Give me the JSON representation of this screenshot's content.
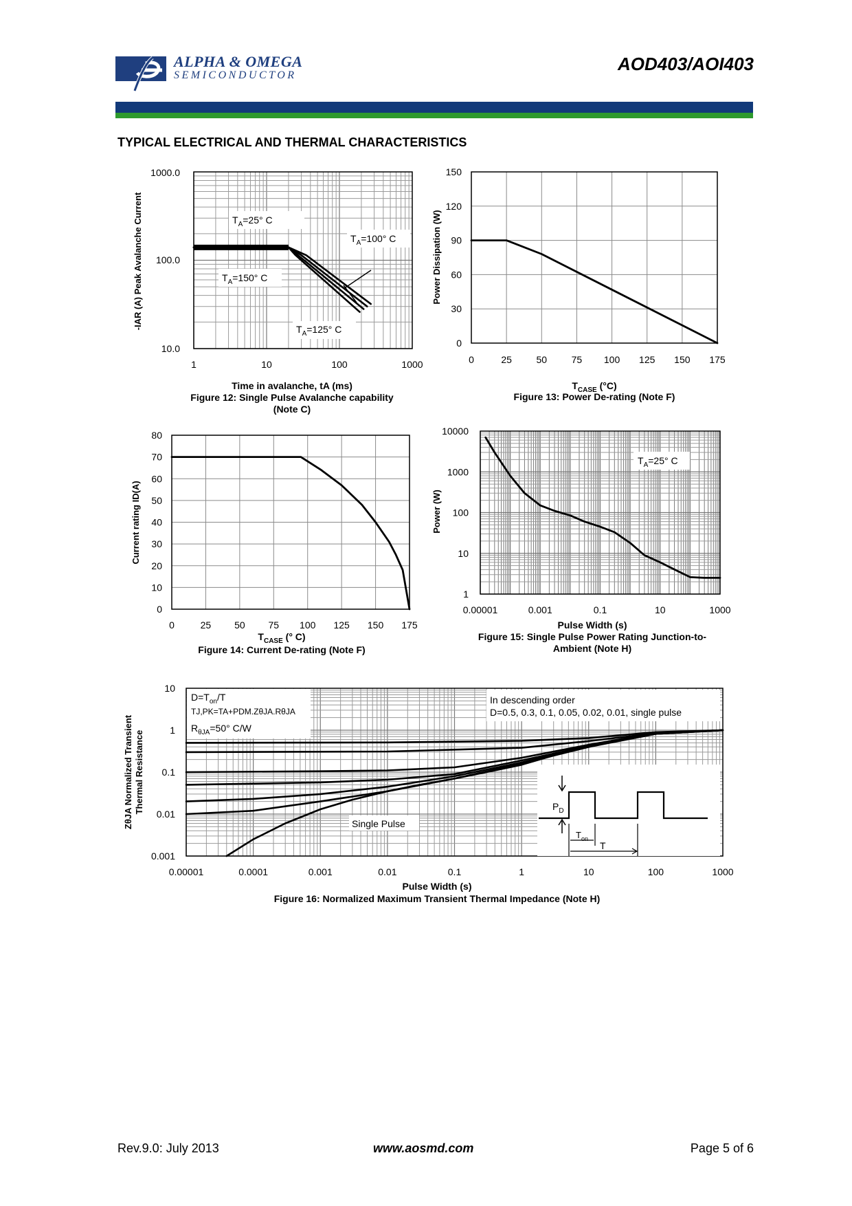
{
  "header": {
    "company": "ALPHA & OMEGA",
    "company_sub": "SEMICONDUCTOR",
    "part_number": "AOD403/AOI403",
    "colors": {
      "brand_blue": "#123a7a",
      "brand_green": "#2e9a2e"
    }
  },
  "section_title": "TYPICAL ELECTRICAL AND THERMAL CHARACTERISTICS",
  "chart_data": [
    {
      "type": "line",
      "id": "fig12",
      "title": "Figure 12: Single Pulse Avalanche capability",
      "subtitle": "(Note C)",
      "xlabel": "Time in avalanche, tA (ms)",
      "ylabel": "-IAR (A) Peak Avalanche Current",
      "xscale": "log",
      "yscale": "log",
      "xlim": [
        1,
        1000
      ],
      "ylim": [
        10,
        1000
      ],
      "xticks": [
        "1",
        "10",
        "100",
        "1000"
      ],
      "yticks": [
        "10.0",
        "100.0",
        "1000.0"
      ],
      "annotations": [
        {
          "base": "T",
          "sub": "A",
          "rest": "=25° C"
        },
        {
          "base": "T",
          "sub": "A",
          "rest": "=100° C"
        },
        {
          "base": "T",
          "sub": "A",
          "rest": "=150° C"
        },
        {
          "base": "T",
          "sub": "A",
          "rest": "=125° C"
        }
      ],
      "series": [
        {
          "name": "TA=25°C",
          "x": [
            1,
            20,
            35,
            270
          ],
          "y": [
            140,
            140,
            114,
            32
          ]
        },
        {
          "name": "TA=100°C",
          "x": [
            1,
            20,
            30,
            240
          ],
          "y": [
            140,
            140,
            114,
            30
          ]
        },
        {
          "name": "TA=125°C",
          "x": [
            1,
            20,
            27,
            215
          ],
          "y": [
            140,
            140,
            114,
            28
          ]
        },
        {
          "name": "TA=150°C",
          "x": [
            1,
            20,
            25,
            190
          ],
          "y": [
            140,
            140,
            114,
            26
          ]
        }
      ]
    },
    {
      "type": "line",
      "id": "fig13",
      "title": "Figure 13: Power De-rating (Note F)",
      "xlabel_base": "T",
      "xlabel_sub": "CASE",
      "xlabel_rest": " (°C)",
      "ylabel": "Power Dissipation (W)",
      "xlim": [
        0,
        175
      ],
      "ylim": [
        0,
        150
      ],
      "xticks": [
        "0",
        "25",
        "50",
        "75",
        "100",
        "125",
        "150",
        "175"
      ],
      "yticks": [
        "0",
        "30",
        "60",
        "90",
        "120",
        "150"
      ],
      "series": [
        {
          "name": "Power",
          "x": [
            0,
            25,
            50,
            175
          ],
          "y": [
            90,
            90,
            78,
            0
          ]
        }
      ]
    },
    {
      "type": "line",
      "id": "fig14",
      "title": "Figure 14: Current De-rating (Note F)",
      "xlabel_base": "T",
      "xlabel_sub": "CASE",
      "xlabel_rest": " (° C)",
      "ylabel": "Current rating ID(A)",
      "xlim": [
        0,
        175
      ],
      "ylim": [
        0,
        80
      ],
      "xticks": [
        "0",
        "25",
        "50",
        "75",
        "100",
        "125",
        "150",
        "175"
      ],
      "yticks": [
        "0",
        "10",
        "20",
        "30",
        "40",
        "50",
        "60",
        "70",
        "80"
      ],
      "series": [
        {
          "name": "Current",
          "x": [
            0,
            95,
            110,
            125,
            140,
            150,
            160,
            165,
            170,
            175
          ],
          "y": [
            70,
            70,
            64,
            57,
            48,
            40,
            31,
            25,
            18,
            0
          ]
        }
      ]
    },
    {
      "type": "line",
      "id": "fig15",
      "title": "Figure 15: Single Pulse Power Rating Junction-to-",
      "subtitle": "Ambient (Note H)",
      "xlabel": "Pulse Width (s)",
      "ylabel": "Power (W)",
      "xscale": "log",
      "yscale": "log",
      "xlim": [
        1e-05,
        1000
      ],
      "ylim": [
        1,
        10000
      ],
      "xticks": [
        "0.00001",
        "0.001",
        "0.1",
        "10",
        "1000"
      ],
      "yticks": [
        "1",
        "10",
        "100",
        "1000",
        "10000"
      ],
      "annotations": [
        {
          "base": "T",
          "sub": "A",
          "rest": "=25° C"
        }
      ],
      "series": [
        {
          "name": "Single Pulse",
          "x": [
            1.5e-05,
            3e-05,
            0.0001,
            0.0003,
            0.001,
            0.003,
            0.01,
            0.03,
            0.1,
            0.3,
            1,
            3,
            10,
            30,
            100,
            300,
            1000
          ],
          "y": [
            7000,
            3000,
            800,
            300,
            150,
            110,
            85,
            60,
            45,
            33,
            18,
            9,
            6,
            4,
            2.6,
            2.5,
            2.5
          ]
        }
      ]
    },
    {
      "type": "line",
      "id": "fig16",
      "title": "Figure 16: Normalized Maximum Transient Thermal Impedance (Note H)",
      "xlabel": "Pulse Width (s)",
      "ylabel_line1": "ZθJA Normalized Transient",
      "ylabel_line2": "Thermal Resistance",
      "xscale": "log",
      "yscale": "log",
      "xlim": [
        1e-05,
        1000
      ],
      "ylim": [
        0.001,
        10
      ],
      "xticks": [
        "0.00001",
        "0.0001",
        "0.001",
        "0.01",
        "0.1",
        "1",
        "10",
        "100",
        "1000"
      ],
      "yticks": [
        "0.001",
        "0.01",
        "0.1",
        "1",
        "10"
      ],
      "legend_title": "In descending order",
      "legend_text": "D=0.5, 0.3, 0.1, 0.05, 0.02, 0.01, single pulse",
      "formula_lines": [
        {
          "pre": "D=T",
          "sub": "on",
          "post": "/T"
        },
        {
          "text": "TJ,PK=TA+PDM.ZθJA.RθJA"
        },
        {
          "pre": "R",
          "sub": "θJA",
          "post": "=50° C/W"
        }
      ],
      "single_pulse_label": "Single Pulse",
      "inset_labels": {
        "pd_base": "P",
        "pd_sub": "D",
        "ton_base": "T",
        "ton_sub": "on",
        "t": "T"
      },
      "series": [
        {
          "name": "D=0.5",
          "x": [
            1e-05,
            0.01,
            1,
            10,
            100,
            1000
          ],
          "y": [
            0.5,
            0.51,
            0.56,
            0.65,
            0.9,
            1
          ]
        },
        {
          "name": "D=0.3",
          "x": [
            1e-05,
            0.01,
            1,
            10,
            100,
            1000
          ],
          "y": [
            0.3,
            0.31,
            0.38,
            0.55,
            0.85,
            1
          ]
        },
        {
          "name": "D=0.1",
          "x": [
            1e-05,
            0.001,
            0.01,
            0.1,
            1,
            10,
            100,
            1000
          ],
          "y": [
            0.1,
            0.105,
            0.11,
            0.13,
            0.22,
            0.45,
            0.85,
            1
          ]
        },
        {
          "name": "D=0.05",
          "x": [
            1e-05,
            0.001,
            0.01,
            0.1,
            1,
            10,
            100,
            1000
          ],
          "y": [
            0.05,
            0.057,
            0.066,
            0.09,
            0.19,
            0.42,
            0.83,
            1
          ]
        },
        {
          "name": "D=0.02",
          "x": [
            1e-05,
            0.0001,
            0.001,
            0.01,
            0.1,
            1,
            10,
            100,
            1000
          ],
          "y": [
            0.02,
            0.023,
            0.03,
            0.045,
            0.08,
            0.17,
            0.41,
            0.82,
            1
          ]
        },
        {
          "name": "D=0.01",
          "x": [
            1e-05,
            0.0001,
            0.001,
            0.01,
            0.1,
            1,
            10,
            100,
            1000
          ],
          "y": [
            0.01,
            0.012,
            0.02,
            0.035,
            0.07,
            0.16,
            0.4,
            0.82,
            1
          ]
        },
        {
          "name": "Single Pulse",
          "x": [
            4e-05,
            0.0001,
            0.0003,
            0.001,
            0.003,
            0.01,
            0.03,
            0.1,
            0.3,
            1,
            3,
            10,
            30,
            100,
            1000
          ],
          "y": [
            0.001,
            0.0025,
            0.006,
            0.013,
            0.022,
            0.035,
            0.05,
            0.07,
            0.1,
            0.15,
            0.25,
            0.4,
            0.6,
            0.82,
            1
          ]
        }
      ]
    }
  ],
  "footer": {
    "revision": "Rev.9.0: July 2013",
    "website": "www.aosmd.com",
    "page": "Page 5 of 6"
  }
}
